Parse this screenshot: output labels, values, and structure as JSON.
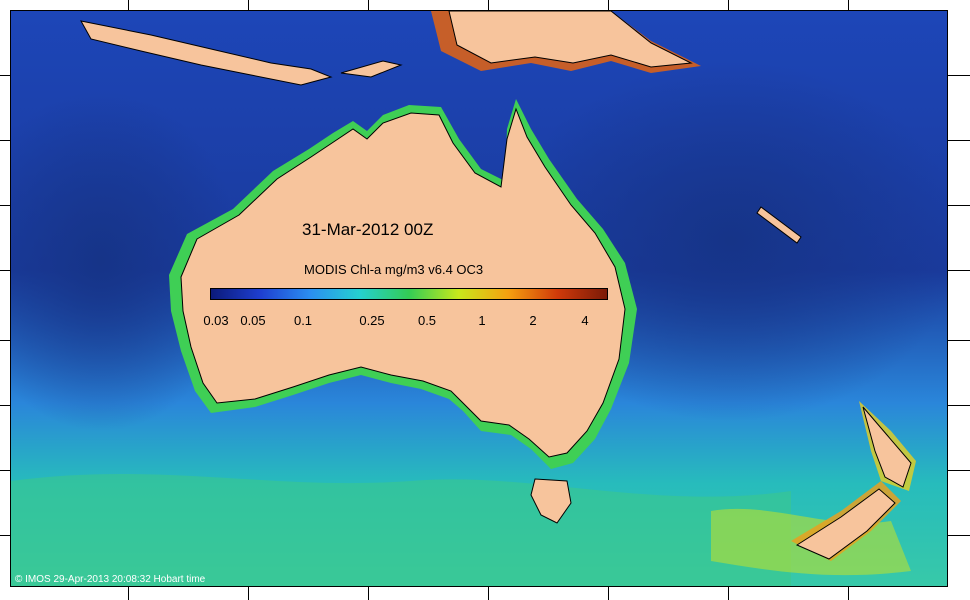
{
  "map": {
    "date": "31-Mar-2012 00Z",
    "colorbar": {
      "title": "MODIS Chl-a mg/m3 v6.4 OC3",
      "ticks": [
        "0.03",
        "0.05",
        "0.1",
        "0.25",
        "0.5",
        "1",
        "2",
        "4"
      ],
      "colors": [
        "#0b1a7a",
        "#1e3fd0",
        "#2b8ef0",
        "#25d0d0",
        "#33cc55",
        "#c8e81c",
        "#f5a010",
        "#d03a0a",
        "#7a1a08"
      ]
    },
    "copyright": "© IMOS 29-Apr-2013 20:08:32 Hobart time",
    "colors": {
      "land": "#f7c49c",
      "deep_ocean": "#1b3fa0",
      "mid_ocean": "#2a8fe0",
      "southern_ocean": "#28c0b8",
      "coastal_high": "#d9621a"
    }
  }
}
